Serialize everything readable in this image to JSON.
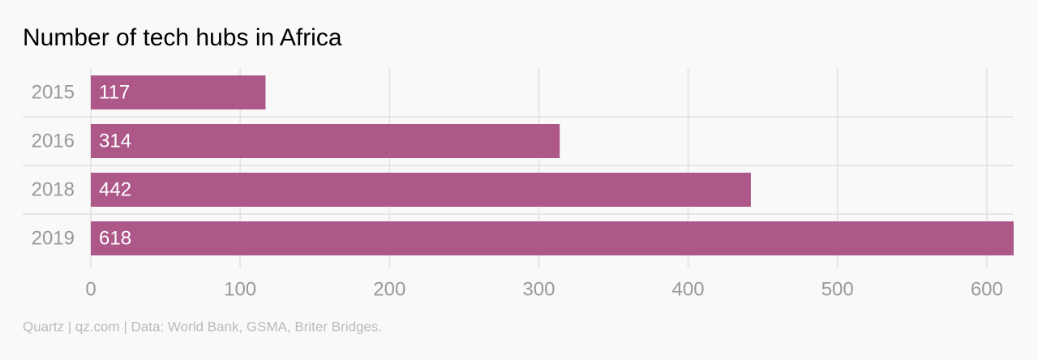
{
  "chart_data": {
    "type": "bar",
    "orientation": "horizontal",
    "title": "Number of tech hubs in Africa",
    "categories": [
      "2015",
      "2016",
      "2018",
      "2019"
    ],
    "values": [
      117,
      314,
      442,
      618
    ],
    "color": "#ad5889",
    "xlim": [
      0,
      618
    ],
    "xticks": [
      0,
      100,
      200,
      300,
      400,
      500,
      600
    ],
    "grid": true,
    "source": "Quartz | qz.com | Data: World Bank, GSMA, Briter Bridges."
  }
}
